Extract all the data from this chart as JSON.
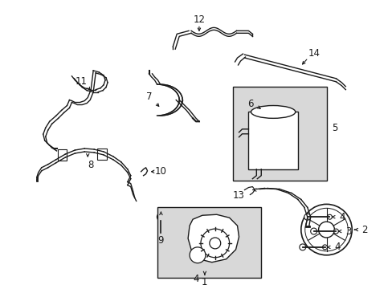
{
  "background_color": "#ffffff",
  "line_color": "#1a1a1a",
  "box_fill_color": "#e0e0e0",
  "figsize": [
    4.89,
    3.6
  ],
  "dpi": 100
}
